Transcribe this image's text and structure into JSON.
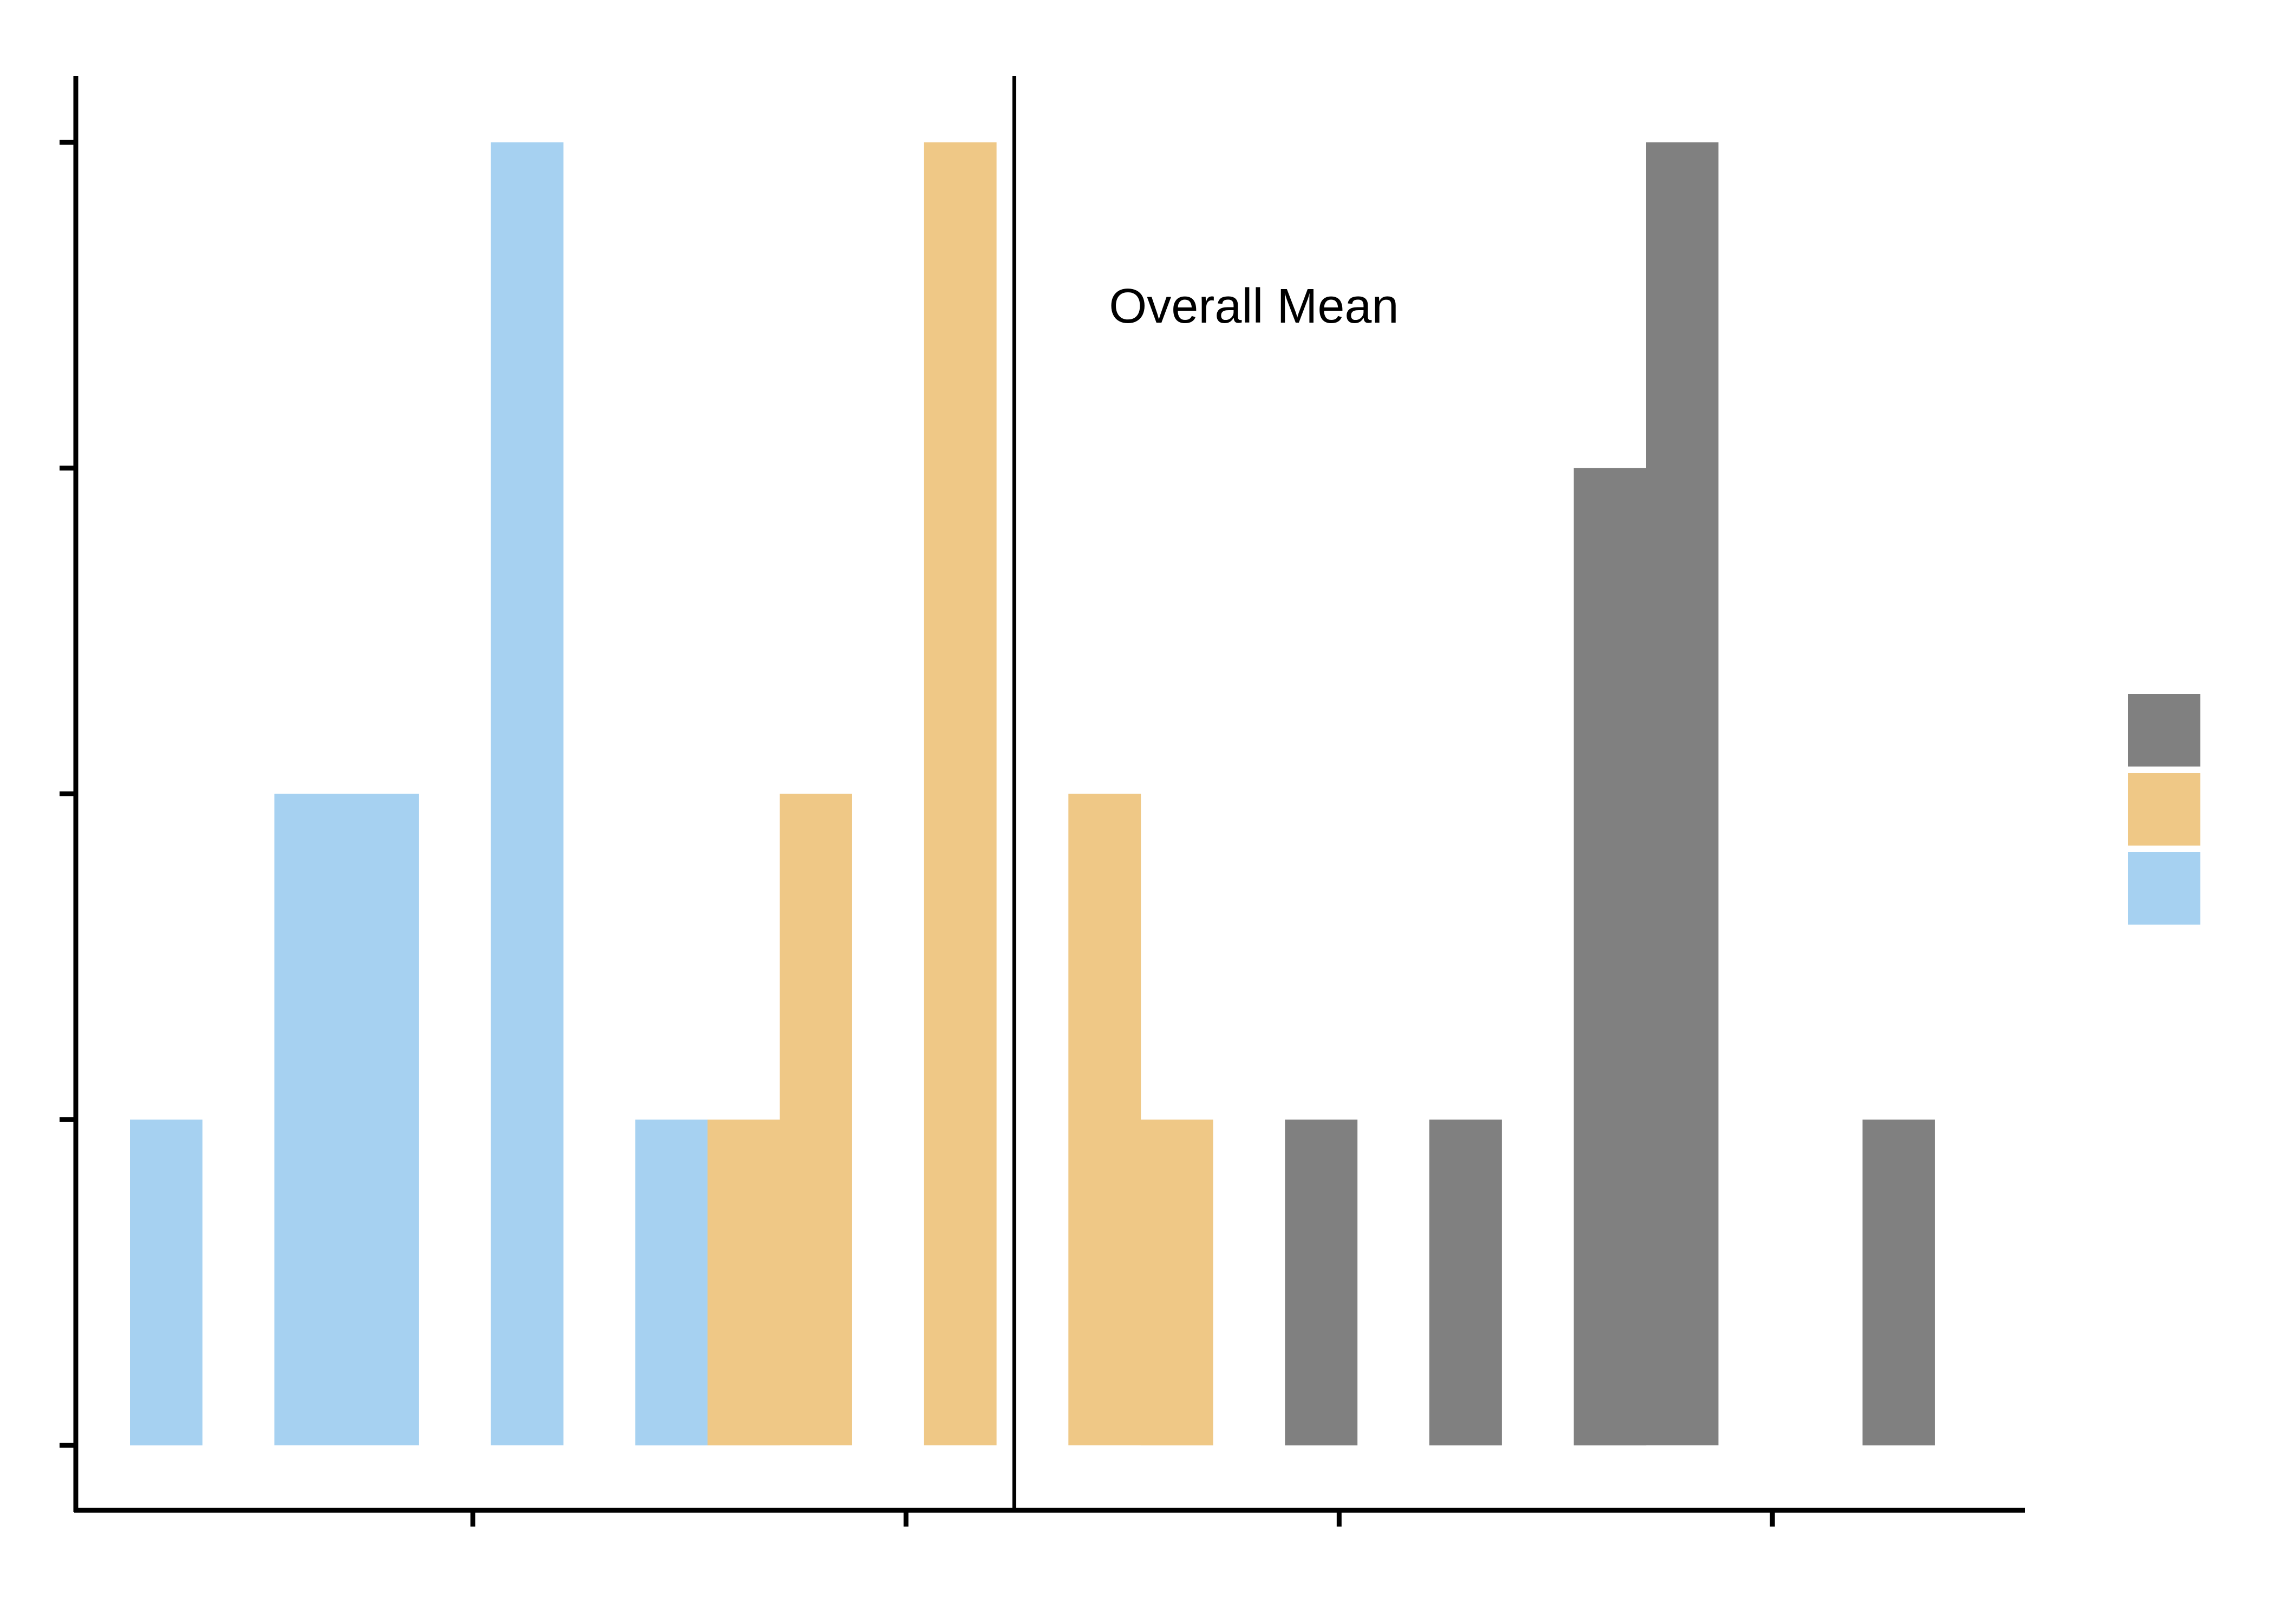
{
  "chart_data": {
    "type": "bar",
    "subtype": "histogram",
    "bin_centers": [
      1,
      2,
      3,
      4,
      5,
      6,
      7,
      8,
      9,
      10,
      11,
      12,
      13,
      14,
      15,
      16,
      17,
      18,
      19,
      20,
      21,
      22,
      23,
      24,
      25
    ],
    "series": [
      {
        "color": "#A6D1F1",
        "values": [
          1,
          0,
          2,
          2,
          0,
          4,
          0,
          1,
          0,
          0,
          0,
          0,
          0,
          0,
          0,
          0,
          0,
          0,
          0,
          0,
          0,
          0,
          0,
          0,
          0
        ]
      },
      {
        "color": "#EFC886",
        "values": [
          0,
          0,
          0,
          0,
          0,
          0,
          0,
          0,
          1,
          2,
          0,
          4,
          0,
          2,
          1,
          0,
          0,
          0,
          0,
          0,
          0,
          0,
          0,
          0,
          0
        ]
      },
      {
        "color": "#808080",
        "values": [
          0,
          0,
          0,
          0,
          0,
          0,
          0,
          0,
          0,
          0,
          0,
          0,
          0,
          0,
          0,
          0,
          1,
          0,
          1,
          0,
          3,
          4,
          0,
          0,
          1
        ]
      }
    ],
    "ylim": [
      0,
      4
    ],
    "xlim": [
      -0.25,
      26.75
    ],
    "reference_line": {
      "x": 12.75,
      "label": "Overall Mean"
    },
    "legend": {
      "position": "right",
      "labels_shown": false
    },
    "grid": false,
    "title": "",
    "xlabel": "",
    "ylabel": "",
    "tick_labels_shown": false
  }
}
